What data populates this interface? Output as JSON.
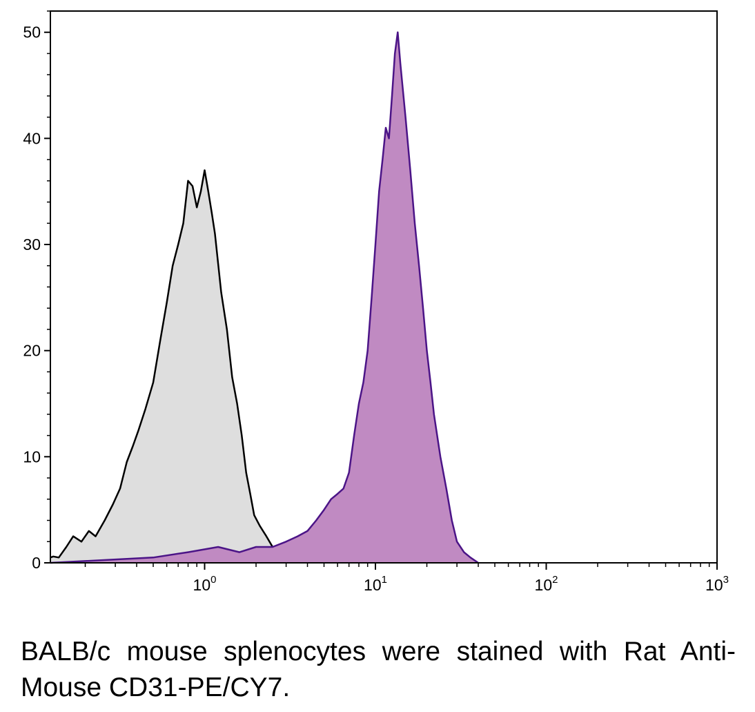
{
  "caption": "BALB/c mouse splenocytes were stained with Rat Anti-Mouse CD31-PE/CY7.",
  "chart_data": {
    "type": "area",
    "title": "",
    "xlabel": "",
    "ylabel": "",
    "xscale": "log",
    "xlim": [
      0.125,
      1000
    ],
    "ylim": [
      0,
      52
    ],
    "grid": false,
    "legend": "none",
    "x_ticks": [
      {
        "base": "10",
        "exp": "0",
        "value": 1
      },
      {
        "base": "10",
        "exp": "1",
        "value": 10
      },
      {
        "base": "10",
        "exp": "2",
        "value": 100
      },
      {
        "base": "10",
        "exp": "3",
        "value": 1000
      }
    ],
    "y_ticks": [
      0,
      10,
      20,
      30,
      40,
      50
    ],
    "series": [
      {
        "fill": "#dedede",
        "stroke": "#000000",
        "x": [
          0.125,
          0.13,
          0.14,
          0.155,
          0.17,
          0.19,
          0.21,
          0.23,
          0.26,
          0.29,
          0.32,
          0.35,
          0.38,
          0.41,
          0.45,
          0.5,
          0.55,
          0.6,
          0.65,
          0.7,
          0.75,
          0.8,
          0.85,
          0.9,
          0.95,
          1.0,
          1.05,
          1.1,
          1.15,
          1.25,
          1.35,
          1.45,
          1.55,
          1.65,
          1.75,
          1.85,
          1.95,
          2.1,
          2.3,
          2.5,
          2.8,
          3.2,
          3.8
        ],
        "values": [
          0.5,
          0.6,
          0.5,
          1.5,
          2.5,
          2.0,
          3.0,
          2.5,
          4.0,
          5.5,
          7.0,
          9.5,
          11.0,
          12.5,
          14.5,
          17.0,
          21.0,
          24.5,
          28.0,
          30.0,
          32.0,
          36.0,
          35.5,
          33.5,
          35.0,
          37.0,
          35.0,
          33.0,
          31.0,
          25.5,
          22.0,
          17.5,
          15.0,
          12.0,
          8.5,
          6.5,
          4.5,
          3.5,
          2.5,
          1.5,
          1.0,
          0.5,
          0.0
        ]
      },
      {
        "fill": "#c08ac2",
        "stroke": "#4b1487",
        "x": [
          0.125,
          0.5,
          0.8,
          1.2,
          1.6,
          2.0,
          2.5,
          3.0,
          3.5,
          4.0,
          4.5,
          5.0,
          5.5,
          6.0,
          6.5,
          7.0,
          7.5,
          8.0,
          8.5,
          9.0,
          9.5,
          10.0,
          10.5,
          11.0,
          11.5,
          12.0,
          12.5,
          13.0,
          13.5,
          14.0,
          15.0,
          16.0,
          17.0,
          18.0,
          19.0,
          20.0,
          21.0,
          22.0,
          24.0,
          26.0,
          28.0,
          30.0,
          33.0,
          36.0,
          40.0
        ],
        "values": [
          0.0,
          0.5,
          1.0,
          1.5,
          1.0,
          1.5,
          1.5,
          2.0,
          2.5,
          3.0,
          4.0,
          5.0,
          6.0,
          6.5,
          7.0,
          8.5,
          12.0,
          15.0,
          17.0,
          20.0,
          25.0,
          30.0,
          35.0,
          38.0,
          41.0,
          40.0,
          44.0,
          48.0,
          50.0,
          47.0,
          42.0,
          37.0,
          32.0,
          28.0,
          24.0,
          20.0,
          17.0,
          14.0,
          10.0,
          7.0,
          4.0,
          2.0,
          1.0,
          0.5,
          0.0
        ]
      }
    ]
  }
}
